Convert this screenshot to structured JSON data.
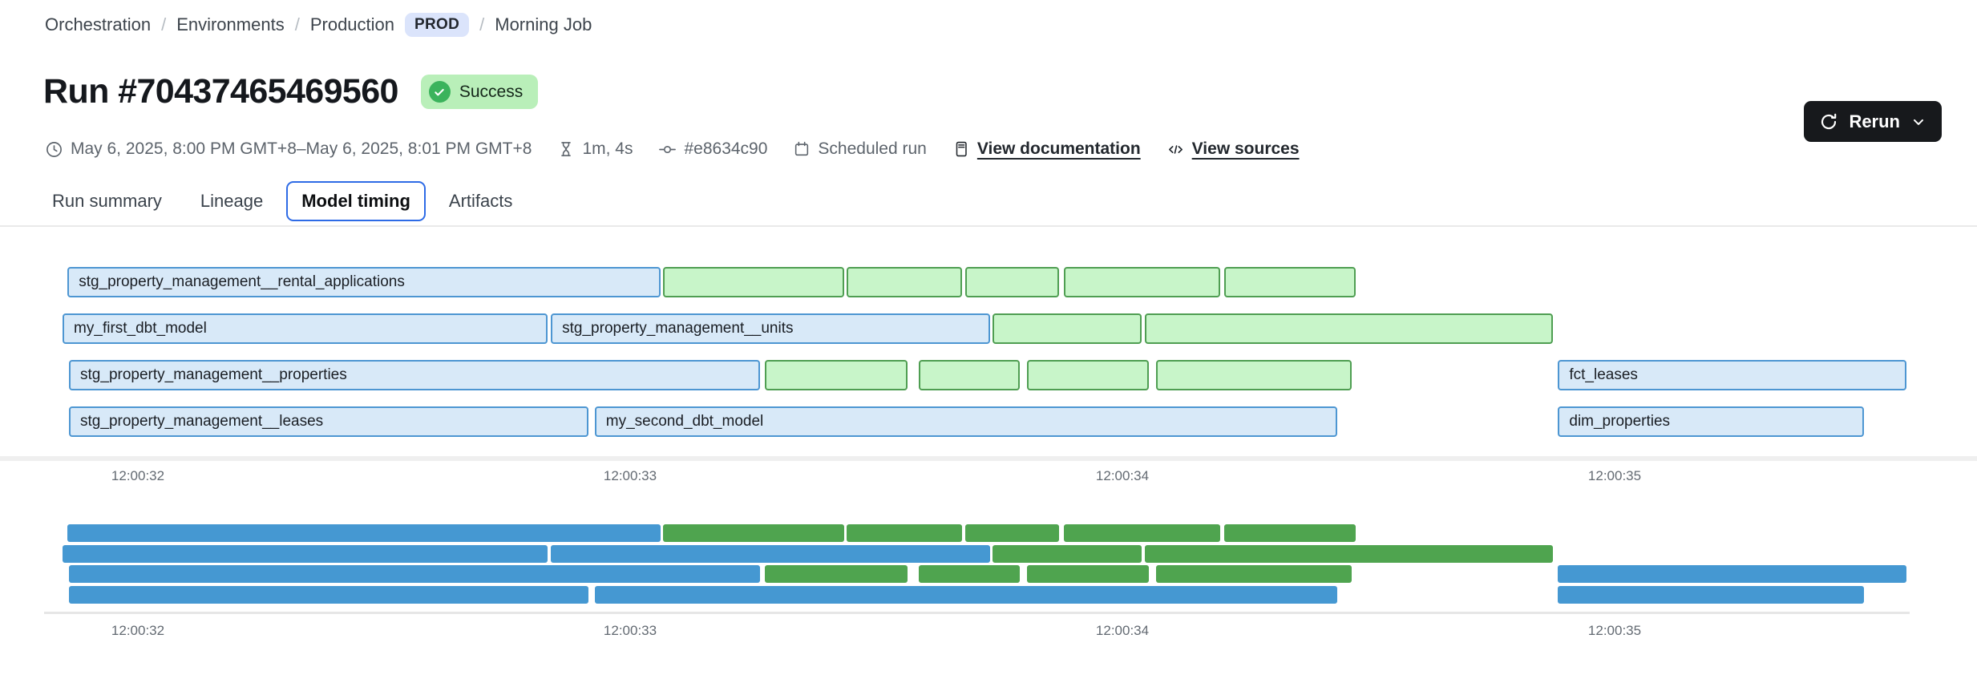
{
  "breadcrumb": {
    "items": [
      "Orchestration",
      "Environments",
      "Production"
    ],
    "env_badge": "PROD",
    "current": "Morning Job",
    "separator": "/"
  },
  "header": {
    "title": "Run #70437465469560",
    "status_badge": "Success",
    "rerun_label": "Rerun"
  },
  "meta": {
    "time_range": "May 6, 2025, 8:00 PM GMT+8–May 6, 2025, 8:01 PM GMT+8",
    "duration": "1m, 4s",
    "commit_sha": "#e8634c90",
    "run_type": "Scheduled run",
    "view_documentation": "View documentation",
    "view_sources": "View sources"
  },
  "tabs": [
    {
      "label": "Run summary",
      "active": false
    },
    {
      "label": "Lineage",
      "active": false
    },
    {
      "label": "Model timing",
      "active": true
    },
    {
      "label": "Artifacts",
      "active": false
    }
  ],
  "icons": [
    "clock-icon",
    "hourglass-icon",
    "commit-icon",
    "calendar-icon",
    "document-icon",
    "code-icon",
    "refresh-icon",
    "chevron-down-icon",
    "check-icon"
  ],
  "colors": {
    "bar_blue_fill": "#d8e9f8",
    "bar_blue_border": "#4d96d2",
    "bar_green_fill": "#c8f5c9",
    "bar_green_border": "#4f9e52",
    "minimap_blue": "#4598d2",
    "minimap_green": "#4fa44f",
    "success_bg": "#b9efb9",
    "success_icon": "#3bb35c",
    "prod_badge_bg": "#dbe4fb",
    "active_tab_border": "#2e6be6",
    "rerun_bg": "#17191c"
  },
  "chart_data": {
    "type": "gantt",
    "title": "Model timing",
    "axis": {
      "tick_labels": [
        "12:00:32",
        "12:00:33",
        "12:00:34",
        "12:00:35"
      ],
      "tick_seconds": [
        32,
        33,
        34,
        35
      ],
      "unit": "time of day (h:mm:ss)"
    },
    "rows": [
      {
        "segments": [
          {
            "label": "stg_property_management__rental_applications",
            "color": "blue",
            "start": 31.857,
            "end": 33.062
          },
          {
            "label": "",
            "color": "green",
            "start": 33.067,
            "end": 33.435
          },
          {
            "label": "",
            "color": "green",
            "start": 33.44,
            "end": 33.674
          },
          {
            "label": "",
            "color": "green",
            "start": 33.681,
            "end": 33.871
          },
          {
            "label": "",
            "color": "green",
            "start": 33.881,
            "end": 34.198
          },
          {
            "label": "",
            "color": "green",
            "start": 34.207,
            "end": 34.474
          }
        ]
      },
      {
        "segments": [
          {
            "label": "my_first_dbt_model",
            "color": "blue",
            "start": 31.847,
            "end": 32.832
          },
          {
            "label": "stg_property_management__units",
            "color": "blue",
            "start": 32.839,
            "end": 33.731
          },
          {
            "label": "",
            "color": "green",
            "start": 33.736,
            "end": 34.039
          },
          {
            "label": "",
            "color": "green",
            "start": 34.046,
            "end": 34.874
          }
        ]
      },
      {
        "segments": [
          {
            "label": "stg_property_management__properties",
            "color": "blue",
            "start": 31.86,
            "end": 33.264
          },
          {
            "label": "",
            "color": "green",
            "start": 33.273,
            "end": 33.563
          },
          {
            "label": "",
            "color": "green",
            "start": 33.586,
            "end": 33.792
          },
          {
            "label": "",
            "color": "green",
            "start": 33.806,
            "end": 34.054
          },
          {
            "label": "",
            "color": "green",
            "start": 34.068,
            "end": 34.466
          },
          {
            "label": "fct_leases",
            "color": "blue",
            "start": 34.885,
            "end": 35.593
          }
        ]
      },
      {
        "segments": [
          {
            "label": "stg_property_management__leases",
            "color": "blue",
            "start": 31.86,
            "end": 32.915
          },
          {
            "label": "my_second_dbt_model",
            "color": "blue",
            "start": 32.928,
            "end": 34.436
          },
          {
            "label": "dim_properties",
            "color": "blue",
            "start": 34.885,
            "end": 35.507
          }
        ]
      }
    ],
    "minimap": "same rows repeated as solid-color brush overview below main chart"
  }
}
